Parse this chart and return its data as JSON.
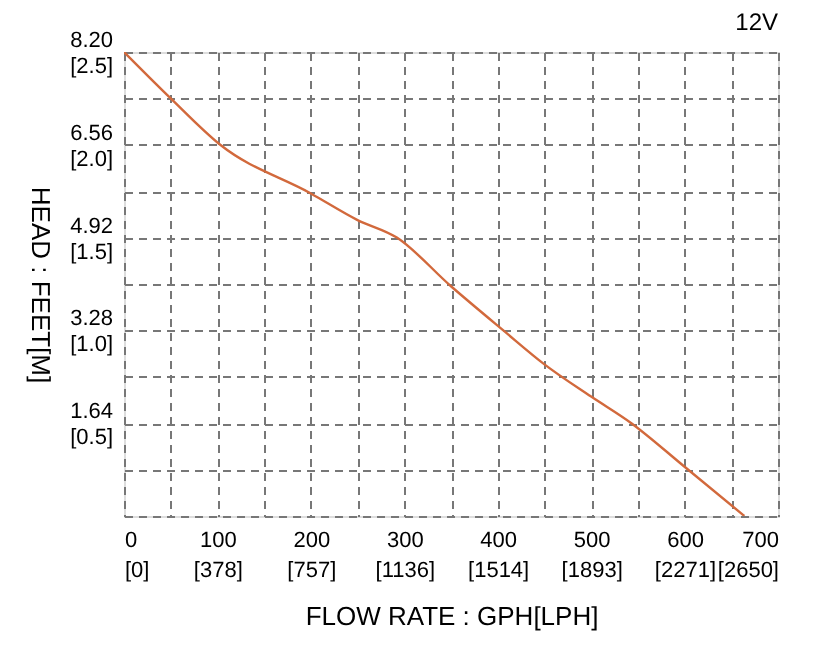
{
  "chart_data": {
    "type": "line",
    "title": "12V",
    "xlabel": "FLOW RATE : GPH[LPH]",
    "ylabel": "HEAD : FEET[M]",
    "x": [
      0,
      50,
      103,
      200,
      250,
      292,
      350,
      406,
      450,
      500,
      543,
      600,
      664
    ],
    "series": [
      {
        "color": "#d2693c",
        "values": [
          8.2,
          7.38,
          6.56,
          5.7,
          5.23,
          4.92,
          4.06,
          3.28,
          2.68,
          2.11,
          1.64,
          0.87,
          0
        ]
      }
    ],
    "xlim": [
      0,
      700
    ],
    "ylim": [
      0,
      8.2
    ],
    "xticks": [
      0,
      {
        "value": 50,
        "label": null
      },
      100,
      {
        "value": 150,
        "label": null
      },
      200,
      {
        "value": 250,
        "label": null
      },
      300,
      {
        "value": 350,
        "label": null
      },
      400,
      {
        "value": 450,
        "label": null
      },
      500,
      {
        "value": 550,
        "label": null
      },
      600,
      {
        "value": 650,
        "label": null
      },
      700
    ],
    "yticks": [
      {
        "value": 0,
        "label": null
      },
      {
        "value": 0.82,
        "label": null
      },
      1.64,
      {
        "value": 2.46,
        "label": null
      },
      3.28,
      {
        "value": 4.1,
        "label": null
      },
      4.92,
      {
        "value": 5.74,
        "label": null
      },
      6.56,
      {
        "value": 7.38,
        "label": null
      },
      {
        "value": 8.2,
        "label": "8.20"
      }
    ],
    "x2lim": [
      0,
      2650
    ],
    "x2ticks": [
      {
        "value": 0,
        "label": "[0]"
      },
      {
        "value": 378,
        "label": "[378]"
      },
      {
        "value": 757,
        "label": "[757]"
      },
      {
        "value": 1136,
        "label": "[1136]"
      },
      {
        "value": 1514,
        "label": "[1514]"
      },
      {
        "value": 1893,
        "label": "[1893]"
      },
      {
        "value": 2271,
        "label": "[2271]"
      },
      {
        "value": 2650,
        "label": "[2650]"
      }
    ],
    "y2lim": [
      0,
      2.5
    ],
    "y2ticks": [
      {
        "value": 0.5,
        "label": "[0.5]"
      },
      {
        "value": 1.0,
        "label": "[1.0]"
      },
      {
        "value": 1.5,
        "label": "[1.5]"
      },
      {
        "value": 2.0,
        "label": "[2.0]"
      },
      {
        "value": 2.5,
        "label": "[2.5]"
      }
    ],
    "grid": true,
    "marker": "none",
    "line_style": "solid"
  }
}
